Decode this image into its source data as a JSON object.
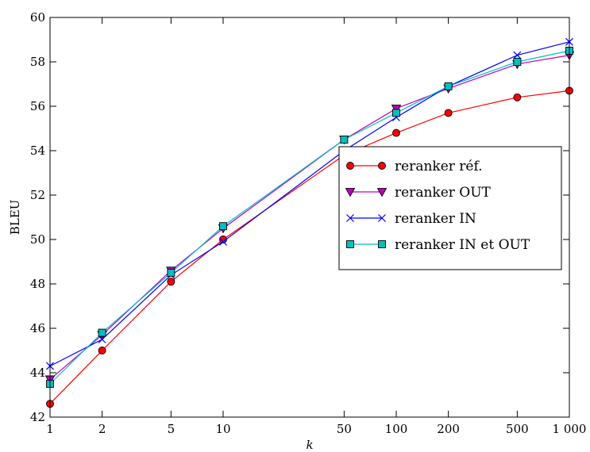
{
  "chart_data": {
    "type": "line",
    "xlabel": "k",
    "ylabel": "BLEU",
    "x_scale": "log",
    "x": [
      1,
      2,
      5,
      10,
      50,
      100,
      200,
      500,
      1000
    ],
    "x_tick_labels": [
      "1",
      "2",
      "5",
      "10",
      "50",
      "100",
      "200",
      "500",
      "1 000"
    ],
    "xlim": [
      1,
      1000
    ],
    "ylim": [
      42,
      60
    ],
    "y_ticks": [
      42,
      44,
      46,
      48,
      50,
      52,
      54,
      56,
      58,
      60
    ],
    "grid": false,
    "legend_position": "right",
    "series": [
      {
        "name": "reranker réf.",
        "color": "#ff0000",
        "marker": "circle",
        "marker_color": "#ff0000",
        "values": [
          42.6,
          45.0,
          48.1,
          50.0,
          53.8,
          54.8,
          55.7,
          56.4,
          56.7
        ]
      },
      {
        "name": "reranker OUT",
        "color": "#bf00bf",
        "marker": "triangle-down",
        "marker_color": "#bf00bf",
        "values": [
          43.7,
          45.7,
          48.6,
          50.5,
          54.5,
          55.9,
          56.8,
          57.9,
          58.3
        ]
      },
      {
        "name": "reranker IN",
        "color": "#0000ff",
        "marker": "x",
        "marker_color": "#0000ff",
        "values": [
          44.3,
          45.5,
          48.4,
          49.9,
          54.0,
          55.5,
          56.9,
          58.3,
          58.9
        ]
      },
      {
        "name": "reranker IN et OUT",
        "color": "#00bfbf",
        "marker": "square",
        "marker_color": "#00bfbf",
        "values": [
          43.5,
          45.8,
          48.5,
          50.6,
          54.5,
          55.7,
          56.9,
          58.0,
          58.5
        ]
      }
    ]
  }
}
